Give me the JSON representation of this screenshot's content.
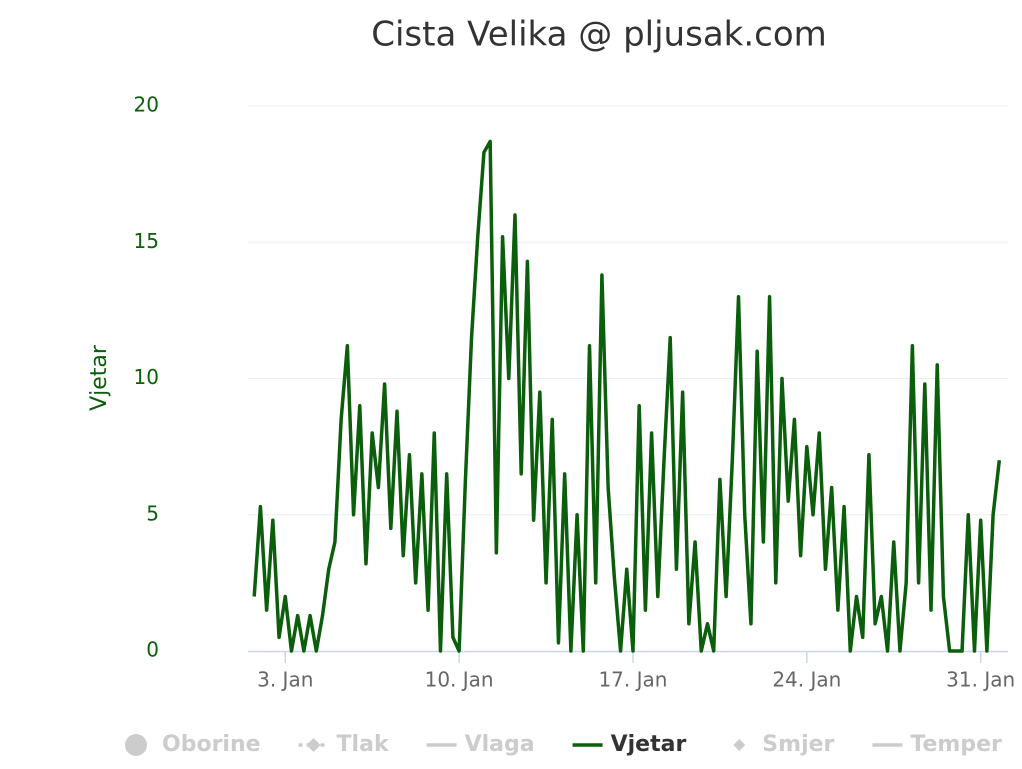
{
  "chart_data": {
    "type": "line",
    "title": "Cista Velika @ pljusak.com",
    "y_axis_title": "Vjetar",
    "axis_color": "#0b5e0b",
    "hidden_color": "#cccccc",
    "grid": true,
    "xlim": [
      1.5,
      32.1
    ],
    "xticks": [
      {
        "value": 3,
        "label": "3. Jan"
      },
      {
        "value": 10,
        "label": "10. Jan"
      },
      {
        "value": 17,
        "label": "17. Jan"
      },
      {
        "value": 24,
        "label": "24. Jan"
      },
      {
        "value": 31,
        "label": "31. Jan"
      }
    ],
    "ylim": [
      0,
      20
    ],
    "yticks": [
      0,
      5,
      10,
      15,
      20
    ],
    "legend": "bottom",
    "series": [
      {
        "name": "Oborine",
        "visible": false,
        "symbol": "circle"
      },
      {
        "name": "Tlak",
        "visible": false,
        "symbol": "dashed-diamond"
      },
      {
        "name": "Vlaga",
        "visible": false,
        "symbol": "line"
      },
      {
        "name": "Vjetar",
        "visible": true,
        "symbol": "line",
        "color": "#0b5e0b",
        "x": [
          1.75,
          2,
          2.25,
          2.5,
          2.75,
          3,
          3.25,
          3.5,
          3.75,
          4,
          4.25,
          4.5,
          4.75,
          5,
          5.25,
          5.5,
          5.75,
          6,
          6.25,
          6.5,
          6.75,
          7,
          7.25,
          7.5,
          7.75,
          8,
          8.25,
          8.5,
          8.75,
          9,
          9.25,
          9.5,
          9.75,
          10,
          10.25,
          10.5,
          10.75,
          11,
          11.25,
          11.5,
          11.75,
          12,
          12.25,
          12.5,
          12.75,
          13,
          13.25,
          13.5,
          13.75,
          14,
          14.25,
          14.5,
          14.75,
          15,
          15.25,
          15.5,
          15.75,
          16,
          16.25,
          16.5,
          16.75,
          17,
          17.25,
          17.5,
          17.75,
          18,
          18.25,
          18.5,
          18.75,
          19,
          19.25,
          19.5,
          19.75,
          20,
          20.25,
          20.5,
          20.75,
          21,
          21.25,
          21.5,
          21.75,
          22,
          22.25,
          22.5,
          22.75,
          23,
          23.25,
          23.5,
          23.75,
          24,
          24.25,
          24.5,
          24.75,
          25,
          25.25,
          25.5,
          25.75,
          26,
          26.25,
          26.5,
          26.75,
          27,
          27.25,
          27.5,
          27.75,
          28,
          28.25,
          28.5,
          28.75,
          29,
          29.25,
          29.5,
          29.75,
          30,
          30.25,
          30.5,
          30.75,
          31,
          31.25,
          31.5,
          31.75
        ],
        "values": [
          2,
          5.3,
          1.5,
          4.8,
          0.5,
          2,
          0,
          1.3,
          0,
          1.3,
          0,
          1.3,
          3,
          4,
          8.5,
          11.2,
          5,
          9,
          3.2,
          8,
          6,
          9.8,
          4.5,
          8.8,
          3.5,
          7.2,
          2.5,
          6.5,
          1.5,
          8,
          0,
          6.5,
          0.5,
          0,
          6.2,
          11.5,
          15.2,
          18.3,
          18.7,
          3.6,
          15.2,
          10,
          16,
          6.5,
          14.3,
          4.8,
          9.5,
          2.5,
          8.5,
          0.3,
          6.5,
          0,
          5,
          0,
          11.2,
          2.5,
          13.8,
          6,
          2.7,
          0,
          3,
          0,
          9,
          1.5,
          8,
          2,
          7,
          11.5,
          3,
          9.5,
          1,
          4,
          0,
          1,
          0,
          6.3,
          2,
          7,
          13,
          5,
          1,
          11,
          4,
          13,
          2.5,
          10,
          5.5,
          8.5,
          3.5,
          7.5,
          5,
          8,
          3,
          6,
          1.5,
          5.3,
          0,
          2,
          0.5,
          7.2,
          1,
          2,
          0,
          4,
          0,
          2.5,
          11.2,
          2.5,
          9.8,
          1.5,
          10.5,
          2,
          0,
          0,
          0,
          5,
          0,
          4.8,
          0,
          5,
          7
        ]
      },
      {
        "name": "Smjer",
        "visible": false,
        "symbol": "diamond"
      },
      {
        "name": "Temper",
        "visible": false,
        "symbol": "line"
      }
    ]
  }
}
